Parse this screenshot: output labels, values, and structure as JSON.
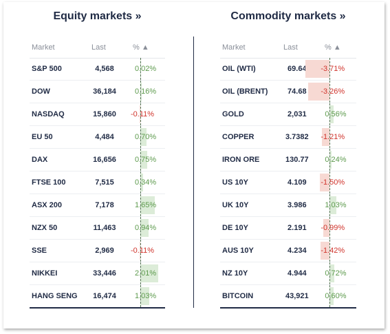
{
  "equity": {
    "title": "Equity markets »",
    "headers": {
      "market": "Market",
      "last": "Last",
      "pct": "% ▲"
    },
    "rows": [
      {
        "name": "S&P 500",
        "last": "4,568",
        "pct": "0.02%",
        "value": 0.02
      },
      {
        "name": "DOW",
        "last": "36,184",
        "pct": "0.16%",
        "value": 0.16
      },
      {
        "name": "NASDAQ",
        "last": "15,860",
        "pct": "-0.11%",
        "value": -0.11
      },
      {
        "name": "EU 50",
        "last": "4,484",
        "pct": "0.70%",
        "value": 0.7
      },
      {
        "name": "DAX",
        "last": "16,656",
        "pct": "0.75%",
        "value": 0.75
      },
      {
        "name": "FTSE 100",
        "last": "7,515",
        "pct": "0.34%",
        "value": 0.34
      },
      {
        "name": "ASX 200",
        "last": "7,178",
        "pct": "1.65%",
        "value": 1.65
      },
      {
        "name": "NZX 50",
        "last": "11,463",
        "pct": "0.94%",
        "value": 0.94
      },
      {
        "name": "SSE",
        "last": "2,969",
        "pct": "-0.11%",
        "value": -0.11
      },
      {
        "name": "NIKKEI",
        "last": "33,446",
        "pct": "2.01%",
        "value": 2.01
      },
      {
        "name": "HANG SENG",
        "last": "16,474",
        "pct": "1.03%",
        "value": 1.03
      }
    ]
  },
  "commodity": {
    "title": "Commodity markets »",
    "headers": {
      "market": "Market",
      "last": "Last",
      "pct": "% ▲"
    },
    "rows": [
      {
        "name": "OIL (WTI)",
        "last": "69.64",
        "pct": "-3.71%",
        "value": -3.71
      },
      {
        "name": "OIL (BRENT)",
        "last": "74.68",
        "pct": "-3.26%",
        "value": -3.26
      },
      {
        "name": "GOLD",
        "last": "2,031",
        "pct": "0.56%",
        "value": 0.56
      },
      {
        "name": "COPPER",
        "last": "3.7382",
        "pct": "-1.21%",
        "value": -1.21
      },
      {
        "name": "IRON ORE",
        "last": "130.77",
        "pct": "0.24%",
        "value": 0.24
      },
      {
        "name": "US 10Y",
        "last": "4.109",
        "pct": "-1.50%",
        "value": -1.5
      },
      {
        "name": "UK 10Y",
        "last": "3.986",
        "pct": "1.03%",
        "value": 1.03
      },
      {
        "name": "DE 10Y",
        "last": "2.191",
        "pct": "-0.99%",
        "value": -0.99
      },
      {
        "name": "AUS 10Y",
        "last": "4.234",
        "pct": "-1.42%",
        "value": -1.42
      },
      {
        "name": "NZ 10Y",
        "last": "4.944",
        "pct": "0.72%",
        "value": 0.72
      },
      {
        "name": "BITCOIN",
        "last": "43,921",
        "pct": "0.60%",
        "value": 0.6
      }
    ]
  },
  "colors": {
    "positive_text": "#5d9a4d",
    "negative_text": "#d0342c",
    "positive_bar": "#dcecd8",
    "negative_bar": "#f7d9d3"
  }
}
